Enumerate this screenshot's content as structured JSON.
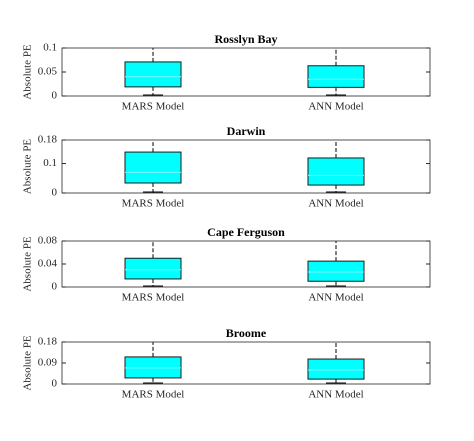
{
  "chart_data": [
    {
      "type": "box",
      "title": "Rosslyn Bay",
      "y_label": "Absolute PE",
      "categories": [
        "MARS Model",
        "ANN Model"
      ],
      "color": "#00ffff",
      "boxes": [
        {
          "whisker_low": 0,
          "q1": 0.019,
          "median": 0.04,
          "q3": 0.071,
          "whisker_high": 0.1
        },
        {
          "whisker_low": 0,
          "q1": 0.018,
          "median": 0.035,
          "q3": 0.063,
          "whisker_high": 0.1
        }
      ],
      "ylim": [
        0,
        0.1
      ],
      "yticks": [
        0,
        0.05,
        0.1
      ]
    },
    {
      "type": "box",
      "title": "Darwin",
      "y_label": "Absolute PE",
      "categories": [
        "MARS Model",
        "ANN Model"
      ],
      "color": "#00ffff",
      "boxes": [
        {
          "whisker_low": 0,
          "q1": 0.034,
          "median": 0.07,
          "q3": 0.139,
          "whisker_high": 0.18
        },
        {
          "whisker_low": 0,
          "q1": 0.027,
          "median": 0.06,
          "q3": 0.119,
          "whisker_high": 0.18
        }
      ],
      "ylim": [
        0,
        0.18
      ],
      "yticks": [
        0,
        0.1,
        0.18
      ]
    },
    {
      "type": "box",
      "title": "Cape Ferguson",
      "y_label": "Absolute PE",
      "categories": [
        "MARS Model",
        "ANN Model"
      ],
      "color": "#00ffff",
      "boxes": [
        {
          "whisker_low": 0,
          "q1": 0.014,
          "median": 0.03,
          "q3": 0.05,
          "whisker_high": 0.08
        },
        {
          "whisker_low": 0,
          "q1": 0.01,
          "median": 0.026,
          "q3": 0.045,
          "whisker_high": 0.08
        }
      ],
      "ylim": [
        0,
        0.08
      ],
      "yticks": [
        0,
        0.04,
        0.08
      ]
    },
    {
      "type": "box",
      "title": "Broome",
      "y_label": "Absolute PE",
      "categories": [
        "MARS Model",
        "ANN Model"
      ],
      "color": "#00ffff",
      "boxes": [
        {
          "whisker_low": 0,
          "q1": 0.026,
          "median": 0.069,
          "q3": 0.116,
          "whisker_high": 0.18
        },
        {
          "whisker_low": 0,
          "q1": 0.021,
          "median": 0.06,
          "q3": 0.107,
          "whisker_high": 0.18
        }
      ],
      "ylim": [
        0,
        0.18
      ],
      "yticks": [
        0,
        0.09,
        0.18
      ]
    }
  ]
}
